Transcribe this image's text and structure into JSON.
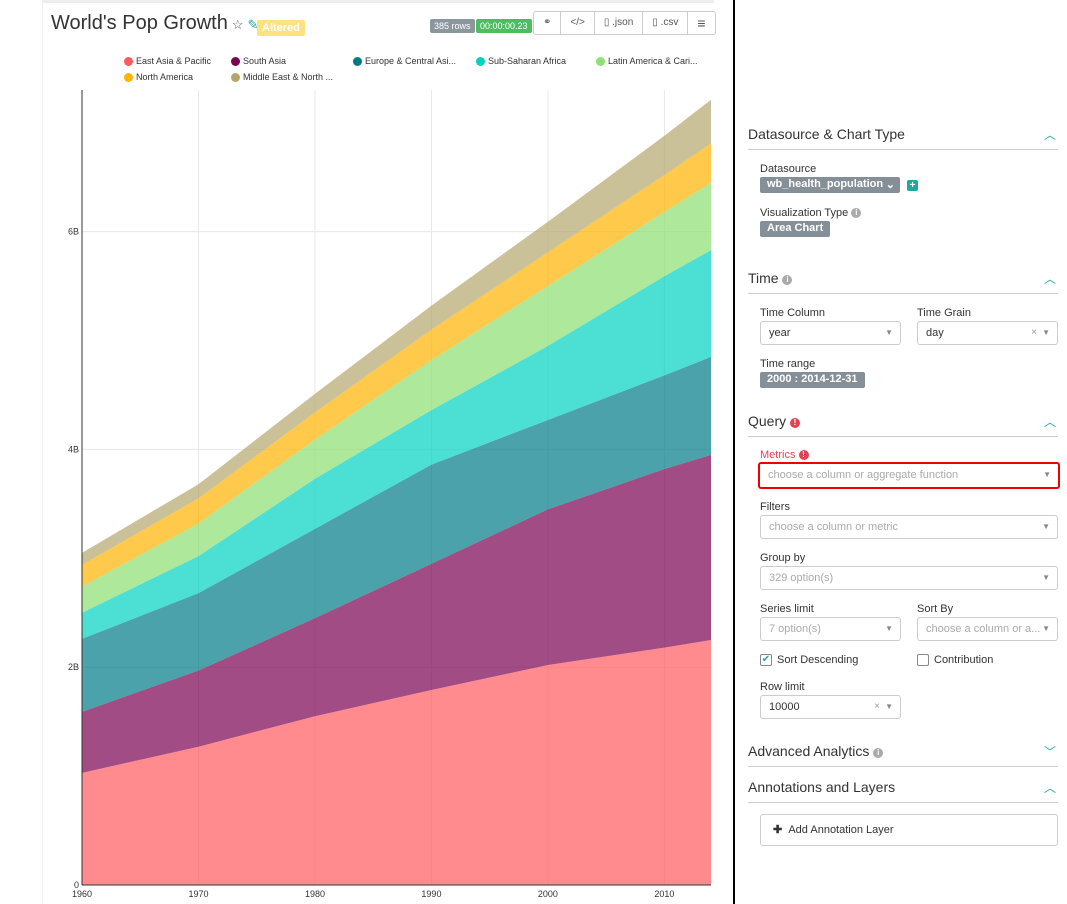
{
  "header": {
    "title": "World's Pop Growth",
    "status": "Altered",
    "rows": "385 rows",
    "timer": "00:00:00.23",
    "buttons": [
      {
        "icon": "link-icon",
        "label": "⚭"
      },
      {
        "icon": "code-icon",
        "label": "</>"
      },
      {
        "icon": "file-icon",
        "label": ".json"
      },
      {
        "icon": "file-icon",
        "label": ".csv"
      },
      {
        "icon": "menu-icon",
        "label": "≡"
      }
    ]
  },
  "chart_data": {
    "type": "area",
    "stacked": true,
    "x": [
      1960,
      1970,
      1980,
      1990,
      2000,
      2010,
      2014
    ],
    "xticks": [
      "1960",
      "1970",
      "1980",
      "1990",
      "2000",
      "2010"
    ],
    "yticks": [
      "0",
      "2B",
      "4B",
      "6B"
    ],
    "ylim": [
      0,
      7.3
    ],
    "xlim": [
      1960,
      2014
    ],
    "grid": true,
    "legend": "top",
    "series": [
      {
        "name": "East Asia & Pacific",
        "color": "#ff5a5f",
        "values": [
          1.03,
          1.27,
          1.55,
          1.79,
          2.02,
          2.18,
          2.25
        ]
      },
      {
        "name": "South Asia",
        "color": "#7b0051",
        "values": [
          0.56,
          0.7,
          0.9,
          1.16,
          1.43,
          1.64,
          1.7
        ]
      },
      {
        "name": "Europe & Central Asi...",
        "color": "#007a87",
        "values": [
          0.67,
          0.71,
          0.82,
          0.91,
          0.82,
          0.86,
          0.9
        ]
      },
      {
        "name": "Sub-Saharan Africa",
        "color": "#00d1c1",
        "values": [
          0.24,
          0.34,
          0.46,
          0.5,
          0.68,
          0.91,
          0.98
        ]
      },
      {
        "name": "Latin America & Cari...",
        "color": "#8ce071",
        "values": [
          0.24,
          0.3,
          0.36,
          0.46,
          0.55,
          0.59,
          0.62
        ]
      },
      {
        "name": "North America",
        "color": "#ffb400",
        "values": [
          0.2,
          0.23,
          0.25,
          0.28,
          0.31,
          0.34,
          0.36
        ]
      },
      {
        "name": "Middle East & North ...",
        "color": "#b4a76c",
        "values": [
          0.11,
          0.13,
          0.17,
          0.22,
          0.28,
          0.36,
          0.4
        ]
      }
    ]
  },
  "panel": {
    "datasource_section": "Datasource & Chart Type",
    "datasource_label": "Datasource",
    "datasource": "wb_health_population",
    "viz_label": "Visualization Type",
    "viz": "Area Chart",
    "time_section": "Time",
    "time_column_label": "Time Column",
    "time_column": "year",
    "time_grain_label": "Time Grain",
    "time_grain": "day",
    "time_range_label": "Time range",
    "time_range": "2000 : 2014-12-31",
    "query_section": "Query",
    "metrics_label": "Metrics",
    "metrics_placeholder": "choose a column or aggregate function",
    "filters_label": "Filters",
    "filters_placeholder": "choose a column or metric",
    "groupby_label": "Group by",
    "groupby": "329 option(s)",
    "series_limit_label": "Series limit",
    "series_limit": "7 option(s)",
    "sortby_label": "Sort By",
    "sortby_placeholder": "choose a column or a...",
    "sort_desc": "Sort Descending",
    "sort_desc_checked": true,
    "contribution": "Contribution",
    "contribution_checked": false,
    "row_limit_label": "Row limit",
    "row_limit": "10000",
    "advanced_section": "Advanced Analytics",
    "annotations_section": "Annotations and Layers",
    "add_annotation": "Add Annotation Layer"
  }
}
